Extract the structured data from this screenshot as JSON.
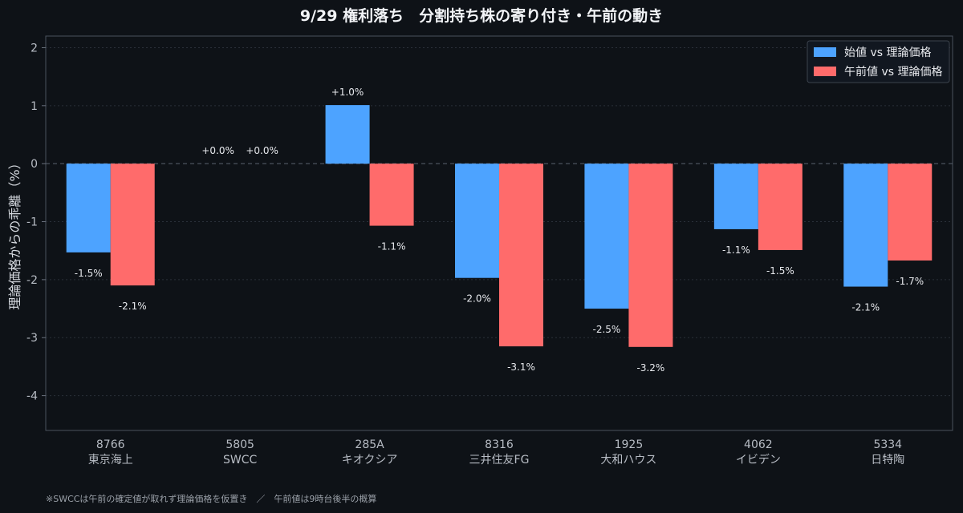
{
  "chart_data": {
    "type": "bar",
    "title": "9/29 権利落ち　分割持ち株の寄り付き・午前の動き",
    "ylabel": "理論価格からの乖離（%）",
    "xlabel": "",
    "ylim": [
      -4.6,
      2.2
    ],
    "yticks": [
      2,
      1,
      0,
      -1,
      -2,
      -3,
      -4
    ],
    "grid": true,
    "legend_position": "top-right",
    "categories": [
      {
        "code": "8766",
        "name": "東京海上"
      },
      {
        "code": "5805",
        "name": "SWCC"
      },
      {
        "code": "285A",
        "name": "キオクシア"
      },
      {
        "code": "8316",
        "name": "三井住友FG"
      },
      {
        "code": "1925",
        "name": "大和ハウス"
      },
      {
        "code": "4062",
        "name": "イビデン"
      },
      {
        "code": "5334",
        "name": "日特陶"
      }
    ],
    "series": [
      {
        "name": "始値 vs 理論価格",
        "color": "#4da3ff",
        "values": [
          -1.53,
          0.0,
          1.01,
          -1.97,
          -2.5,
          -1.13,
          -2.12
        ],
        "labels": [
          "-1.5%",
          "+0.0%",
          "+1.0%",
          "-2.0%",
          "-2.5%",
          "-1.1%",
          "-2.1%"
        ]
      },
      {
        "name": "午前値 vs 理論価格",
        "color": "#ff6b6b",
        "values": [
          -2.1,
          0.0,
          -1.07,
          -3.15,
          -3.16,
          -1.49,
          -1.67
        ],
        "labels": [
          "-2.1%",
          "+0.0%",
          "-1.1%",
          "-3.1%",
          "-3.2%",
          "-1.5%",
          "-1.7%"
        ]
      }
    ],
    "footnote": "※SWCCは午前の確定値が取れず理論価格を仮置き　／　午前値は9時台後半の概算"
  }
}
